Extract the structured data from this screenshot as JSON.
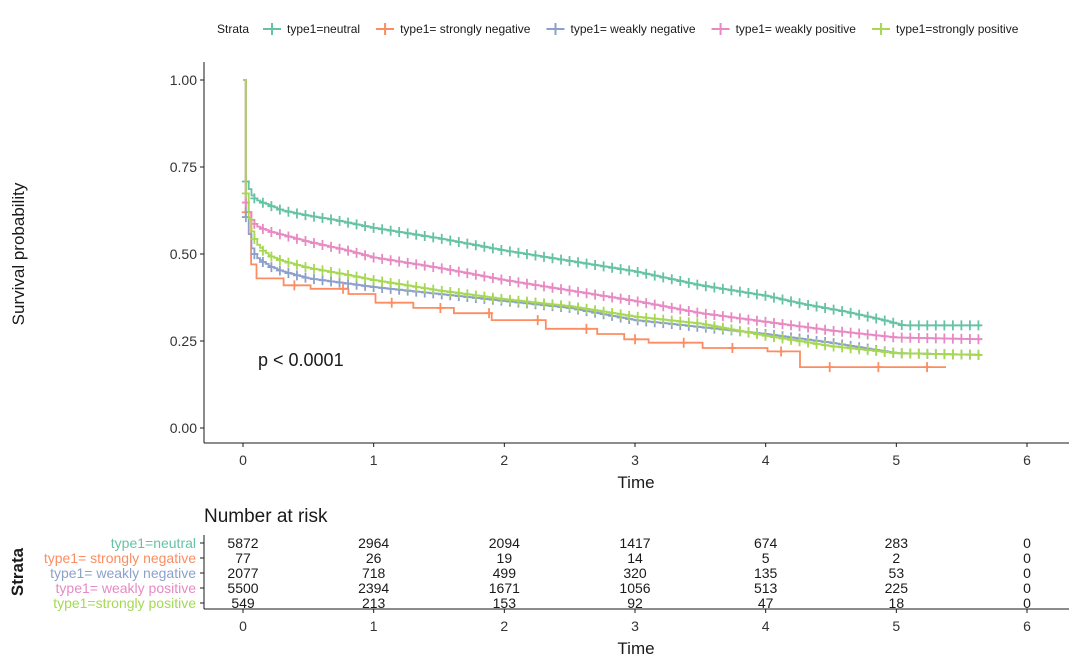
{
  "legend": {
    "title": "Strata",
    "entries": [
      {
        "label": "type1=neutral",
        "color": "#66c2a5"
      },
      {
        "label": "type1= strongly negative",
        "color": "#fc8d62"
      },
      {
        "label": "type1= weakly negative",
        "color": "#8da0cb"
      },
      {
        "label": "type1= weakly positive",
        "color": "#e78ac3"
      },
      {
        "label": "type1=strongly positive",
        "color": "#a6d854"
      }
    ]
  },
  "chart_data": [
    {
      "type": "line",
      "subtype": "kaplan-meier-step",
      "xlabel": "Time",
      "ylabel": "Survival probability",
      "xlim": [
        0,
        6
      ],
      "ylim": [
        0,
        1
      ],
      "x_ticks": [
        "0",
        "1",
        "2",
        "3",
        "4",
        "5",
        "6"
      ],
      "y_ticks": [
        "0.00",
        "0.25",
        "0.50",
        "0.75",
        "1.00"
      ],
      "annotation": "p < 0.0001",
      "legend_position": "top",
      "grid": false,
      "series": [
        {
          "name": "type1=neutral",
          "color": "#66c2a5",
          "x": [
            0,
            0.02,
            0.06,
            0.1,
            0.2,
            0.3,
            0.5,
            0.7,
            1.0,
            1.5,
            2.0,
            2.5,
            3.0,
            3.5,
            4.0,
            4.3,
            4.6,
            4.9,
            5.05,
            5.65
          ],
          "y": [
            1.0,
            0.71,
            0.67,
            0.655,
            0.64,
            0.625,
            0.61,
            0.598,
            0.575,
            0.545,
            0.51,
            0.48,
            0.45,
            0.41,
            0.38,
            0.355,
            0.335,
            0.31,
            0.295,
            0.295
          ]
        },
        {
          "name": "type1= strongly negative",
          "color": "#fc8d62",
          "x": [
            0,
            0.02,
            0.05,
            0.1,
            0.3,
            0.5,
            0.8,
            1.0,
            1.3,
            1.6,
            1.9,
            2.3,
            2.7,
            2.9,
            3.1,
            3.5,
            4.0,
            4.25,
            4.6,
            5.0,
            5.38
          ],
          "y": [
            1.0,
            0.62,
            0.47,
            0.43,
            0.41,
            0.4,
            0.385,
            0.36,
            0.345,
            0.33,
            0.31,
            0.285,
            0.27,
            0.255,
            0.245,
            0.23,
            0.22,
            0.175,
            0.175,
            0.175,
            0.175
          ]
        },
        {
          "name": "type1= weakly negative",
          "color": "#8da0cb",
          "x": [
            0,
            0.02,
            0.06,
            0.1,
            0.2,
            0.3,
            0.5,
            0.8,
            1.0,
            1.5,
            2.0,
            2.5,
            3.0,
            3.5,
            4.0,
            4.5,
            5.0,
            5.65
          ],
          "y": [
            1.0,
            0.61,
            0.52,
            0.49,
            0.465,
            0.45,
            0.43,
            0.415,
            0.405,
            0.385,
            0.365,
            0.345,
            0.31,
            0.29,
            0.27,
            0.245,
            0.215,
            0.21
          ]
        },
        {
          "name": "type1= weakly positive",
          "color": "#e78ac3",
          "x": [
            0,
            0.02,
            0.06,
            0.1,
            0.2,
            0.3,
            0.5,
            0.8,
            1.0,
            1.5,
            2.0,
            2.5,
            3.0,
            3.5,
            4.0,
            4.5,
            5.0,
            5.65
          ],
          "y": [
            1.0,
            0.65,
            0.6,
            0.58,
            0.565,
            0.555,
            0.535,
            0.51,
            0.49,
            0.46,
            0.425,
            0.395,
            0.365,
            0.33,
            0.305,
            0.28,
            0.26,
            0.255
          ]
        },
        {
          "name": "type1=strongly positive",
          "color": "#a6d854",
          "x": [
            0,
            0.02,
            0.05,
            0.1,
            0.15,
            0.2,
            0.3,
            0.5,
            0.8,
            1.0,
            1.5,
            2.0,
            2.5,
            3.0,
            3.5,
            4.0,
            4.5,
            5.0,
            5.65
          ],
          "y": [
            1.0,
            0.68,
            0.58,
            0.53,
            0.51,
            0.495,
            0.48,
            0.46,
            0.44,
            0.425,
            0.395,
            0.37,
            0.35,
            0.32,
            0.3,
            0.265,
            0.235,
            0.215,
            0.21
          ]
        }
      ]
    },
    {
      "type": "table",
      "title": "Number at risk",
      "xlabel": "Time",
      "ylabel": "Strata",
      "x_ticks": [
        "0",
        "1",
        "2",
        "3",
        "4",
        "5",
        "6"
      ],
      "times": [
        0,
        1,
        2,
        3,
        4,
        5,
        6
      ],
      "rows": [
        {
          "label": "type1=neutral",
          "color": "#66c2a5",
          "values": [
            "5872",
            "2964",
            "2094",
            "1417",
            "674",
            "283",
            "0"
          ]
        },
        {
          "label": "type1= strongly negative",
          "color": "#fc8d62",
          "values": [
            "77",
            "26",
            "19",
            "14",
            "5",
            "2",
            "0"
          ]
        },
        {
          "label": "type1= weakly negative",
          "color": "#8da0cb",
          "values": [
            "2077",
            "718",
            "499",
            "320",
            "135",
            "53",
            "0"
          ]
        },
        {
          "label": "type1= weakly positive",
          "color": "#e78ac3",
          "values": [
            "5500",
            "2394",
            "1671",
            "1056",
            "513",
            "225",
            "0"
          ]
        },
        {
          "label": "type1=strongly positive",
          "color": "#a6d854",
          "values": [
            "549",
            "213",
            "153",
            "92",
            "47",
            "18",
            "0"
          ]
        }
      ]
    }
  ]
}
